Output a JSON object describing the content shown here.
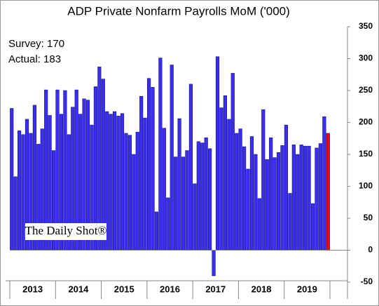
{
  "chart_data": {
    "type": "bar",
    "title": "ADP Private Nonfarm Payrolls MoM ('000)",
    "annotations": [
      "Survey: 170",
      "Actual:  183"
    ],
    "watermark": "The Daily Shot®",
    "categories": [
      null,
      null,
      null,
      null,
      null,
      "2013",
      null,
      null,
      null,
      null,
      null,
      null,
      null,
      null,
      null,
      null,
      null,
      "2014",
      null,
      null,
      null,
      null,
      null,
      null,
      null,
      null,
      null,
      null,
      null,
      "2015",
      null,
      null,
      null,
      null,
      null,
      null,
      null,
      null,
      null,
      null,
      null,
      "2016",
      null,
      null,
      null,
      null,
      null,
      null,
      null,
      null,
      null,
      null,
      null,
      "2017",
      null,
      null,
      null,
      null,
      null,
      null,
      null,
      null,
      null,
      null,
      null,
      "2018",
      null,
      null,
      null,
      null,
      null,
      null,
      null,
      null,
      null,
      null,
      null,
      "2019",
      null,
      null,
      null,
      null,
      null,
      null
    ],
    "values": [
      222,
      115,
      187,
      181,
      205,
      183,
      227,
      166,
      190,
      251,
      211,
      156,
      251,
      213,
      250,
      181,
      224,
      251,
      213,
      237,
      235,
      196,
      256,
      287,
      268,
      217,
      213,
      217,
      210,
      214,
      183,
      180,
      150,
      185,
      241,
      207,
      269,
      255,
      60,
      301,
      191,
      82,
      290,
      146,
      206,
      146,
      156,
      260,
      104,
      170,
      168,
      176,
      159,
      -40,
      303,
      223,
      242,
      205,
      277,
      183,
      190,
      162,
      127,
      178,
      150,
      81,
      220,
      142,
      176,
      145,
      153,
      164,
      196,
      89,
      165,
      150,
      165,
      163,
      163,
      73,
      160,
      167,
      209,
      183
    ],
    "color": "#3b2ef0",
    "highlight_last_color": "#ff0000",
    "ylim": [
      -50,
      350
    ],
    "yticks": [
      -50,
      0,
      50,
      100,
      150,
      200,
      250,
      300,
      350
    ],
    "grid": false
  }
}
